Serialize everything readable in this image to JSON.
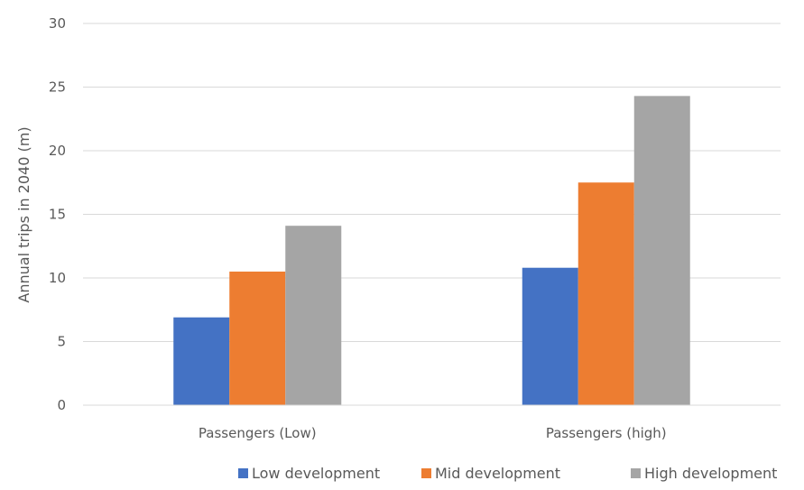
{
  "chart_data": {
    "type": "bar",
    "title": "",
    "xlabel": "",
    "ylabel": "Annual trips in 2040 (m)",
    "ylim": [
      0,
      30
    ],
    "yticks": [
      0,
      5,
      10,
      15,
      20,
      25,
      30
    ],
    "grid": true,
    "legend": "bottom",
    "categories": [
      "Passengers (Low)",
      "Passengers (high)"
    ],
    "series": [
      {
        "name": "Low development",
        "color": "#4472C4",
        "values": [
          6.9,
          10.8
        ]
      },
      {
        "name": "Mid development",
        "color": "#ED7D31",
        "values": [
          10.5,
          17.5
        ]
      },
      {
        "name": "High development",
        "color": "#A5A5A5",
        "values": [
          14.1,
          24.3
        ]
      }
    ]
  }
}
